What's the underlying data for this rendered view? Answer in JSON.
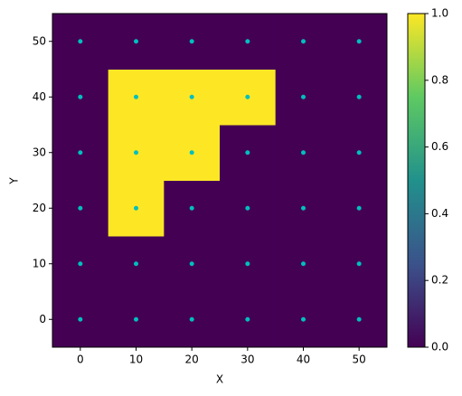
{
  "chart_data": {
    "type": "heatmap",
    "x": [
      0,
      10,
      20,
      30,
      40,
      50
    ],
    "y": [
      0,
      10,
      20,
      30,
      40,
      50
    ],
    "values": [
      [
        0,
        0,
        0,
        0,
        0,
        0
      ],
      [
        0,
        0,
        0,
        0,
        0,
        0
      ],
      [
        0,
        1,
        0,
        0,
        0,
        0
      ],
      [
        0,
        1,
        1,
        0,
        0,
        0
      ],
      [
        0,
        1,
        1,
        1,
        0,
        0
      ],
      [
        0,
        0,
        0,
        0,
        0,
        0
      ]
    ],
    "colormap": "viridis",
    "clim": [
      0,
      1
    ],
    "cticks": [
      {
        "value": 0,
        "label": "0.0"
      },
      {
        "value": 0.2,
        "label": "0.2"
      },
      {
        "value": 0.4,
        "label": "0.4"
      },
      {
        "value": 0.6,
        "label": "0.6"
      },
      {
        "value": 0.8,
        "label": "0.8"
      },
      {
        "value": 1,
        "label": "1.0"
      }
    ],
    "points": {
      "color": "#00bfbf",
      "x": [
        0,
        10,
        20,
        30,
        40,
        50,
        0,
        10,
        20,
        30,
        40,
        50,
        0,
        10,
        20,
        30,
        40,
        50,
        0,
        10,
        20,
        30,
        40,
        50,
        0,
        10,
        20,
        30,
        40,
        50,
        0,
        10,
        20,
        30,
        40,
        50
      ],
      "y": [
        0,
        0,
        0,
        0,
        0,
        0,
        10,
        10,
        10,
        10,
        10,
        10,
        20,
        20,
        20,
        20,
        20,
        20,
        30,
        30,
        30,
        30,
        30,
        30,
        40,
        40,
        40,
        40,
        40,
        40,
        50,
        50,
        50,
        50,
        50,
        50
      ]
    },
    "xlabel": "X",
    "ylabel": "Y",
    "xlim": [
      -5,
      55
    ],
    "ylim": [
      -5,
      55
    ],
    "xticks": [
      0,
      10,
      20,
      30,
      40,
      50
    ],
    "yticks": [
      0,
      10,
      20,
      30,
      40,
      50
    ]
  }
}
